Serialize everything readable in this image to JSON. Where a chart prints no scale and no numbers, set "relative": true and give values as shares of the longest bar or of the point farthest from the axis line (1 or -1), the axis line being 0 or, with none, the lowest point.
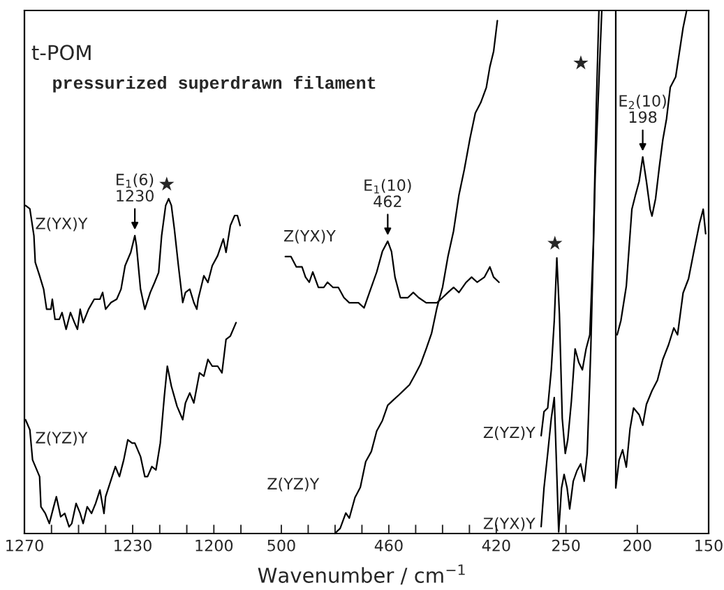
{
  "chart_data": [
    {
      "type": "line",
      "relative": true,
      "title": "t-POM",
      "subtitle": "pressurized superdrawn filament",
      "xlim": [
        1270,
        1185
      ],
      "xticks": [
        1270,
        {
          "value": 1260,
          "label": null
        },
        {
          "value": 1250,
          "label": null
        },
        {
          "value": 1240,
          "label": null
        },
        1230,
        {
          "value": 1220,
          "label": null
        },
        {
          "value": 1210,
          "label": null
        },
        1200,
        {
          "value": 1190,
          "label": null
        }
      ],
      "annotations": [
        {
          "text": "E$_{1}$(6)\n1230",
          "x": 1229.2,
          "y": 0.89
        },
        {
          "text": "★",
          "x": 1216.7,
          "y": 1.0
        }
      ],
      "series": [
        {
          "name": "Z(YX)Y",
          "color": "#000000",
          "x": [
            1269.6,
            1268.0,
            1266.5,
            1266.0,
            1264.4,
            1262.9,
            1261.8,
            1260.2,
            1259.7,
            1258.7,
            1257.1,
            1256.1,
            1254.6,
            1253.0,
            1251.5,
            1250.4,
            1249.4,
            1248.3,
            1246.3,
            1244.2,
            1242.1,
            1241.1,
            1240.0,
            1238.0,
            1235.9,
            1234.3,
            1232.8,
            1230.7,
            1229.2,
            1228.6,
            1227.1,
            1225.5,
            1223.5,
            1221.9,
            1220.4,
            1219.3,
            1217.8,
            1216.7,
            1215.7,
            1214.6,
            1213.1,
            1211.5,
            1210.5,
            1208.9,
            1207.4,
            1206.3,
            1205.8,
            1203.7,
            1202.2,
            1200.6,
            1198.6,
            1196.5,
            1195.5,
            1193.9,
            1192.3,
            1191.3,
            1190.3
          ],
          "values": [
            0.98,
            0.97,
            0.89,
            0.81,
            0.77,
            0.73,
            0.67,
            0.67,
            0.7,
            0.64,
            0.64,
            0.66,
            0.61,
            0.66,
            0.63,
            0.61,
            0.67,
            0.63,
            0.67,
            0.7,
            0.7,
            0.72,
            0.67,
            0.69,
            0.7,
            0.73,
            0.8,
            0.84,
            0.89,
            0.86,
            0.73,
            0.67,
            0.72,
            0.75,
            0.78,
            0.89,
            0.98,
            1.0,
            0.98,
            0.91,
            0.8,
            0.69,
            0.72,
            0.73,
            0.69,
            0.67,
            0.7,
            0.77,
            0.75,
            0.8,
            0.83,
            0.88,
            0.84,
            0.92,
            0.95,
            0.95,
            0.92
          ]
        },
        {
          "name": "Z(YZ)Y",
          "color": "#000000",
          "x": [
            1269.6,
            1268.0,
            1267.0,
            1264.4,
            1263.9,
            1262.3,
            1260.8,
            1259.2,
            1258.2,
            1256.6,
            1255.1,
            1253.5,
            1252.5,
            1250.9,
            1249.4,
            1248.3,
            1246.8,
            1245.2,
            1243.7,
            1242.1,
            1240.6,
            1240.0,
            1238.0,
            1236.4,
            1234.9,
            1233.3,
            1231.8,
            1230.2,
            1229.2,
            1227.1,
            1225.5,
            1224.5,
            1222.9,
            1221.4,
            1219.8,
            1218.3,
            1217.2,
            1215.7,
            1213.6,
            1211.5,
            1210.5,
            1208.9,
            1207.4,
            1205.3,
            1203.7,
            1202.2,
            1200.6,
            1198.6,
            1197.0,
            1195.5,
            1193.9,
            1191.8
          ],
          "values": [
            0.34,
            0.31,
            0.22,
            0.17,
            0.08,
            0.06,
            0.03,
            0.08,
            0.11,
            0.05,
            0.06,
            0.02,
            0.03,
            0.09,
            0.06,
            0.03,
            0.08,
            0.06,
            0.09,
            0.13,
            0.06,
            0.11,
            0.16,
            0.2,
            0.17,
            0.22,
            0.28,
            0.27,
            0.27,
            0.23,
            0.17,
            0.17,
            0.2,
            0.19,
            0.27,
            0.41,
            0.5,
            0.44,
            0.38,
            0.34,
            0.39,
            0.42,
            0.39,
            0.48,
            0.47,
            0.52,
            0.5,
            0.5,
            0.48,
            0.58,
            0.59,
            0.63
          ]
        }
      ]
    },
    {
      "type": "line",
      "relative": true,
      "xlabel": "Wavenumber / cm$^{−1}$",
      "xlim": [
        510,
        410
      ],
      "xticks": [
        500,
        {
          "value": 490,
          "label": null
        },
        {
          "value": 480,
          "label": null
        },
        {
          "value": 470,
          "label": null
        },
        460,
        {
          "value": 450,
          "label": null
        },
        {
          "value": 440,
          "label": null
        },
        {
          "value": 430,
          "label": null
        },
        420
      ],
      "annotations": [
        {
          "text": "E$_{1}$(10)\n462",
          "x": 460.4,
          "y": 0.57
        }
      ],
      "series": [
        {
          "name": "Z(YX)Y",
          "color": "#000000",
          "x": [
            498.5,
            496.4,
            494.4,
            492.3,
            491.0,
            489.6,
            488.3,
            486.2,
            484.2,
            482.8,
            480.8,
            478.8,
            476.7,
            474.7,
            471.3,
            469.2,
            467.2,
            464.5,
            462.4,
            460.4,
            459.0,
            457.7,
            455.7,
            452.9,
            450.9,
            448.9,
            446.1,
            444.1,
            442.1,
            440.0,
            438.0,
            435.9,
            433.9,
            431.2,
            429.2,
            427.1,
            424.4,
            422.4,
            421.0,
            419.0
          ],
          "values": [
            0.54,
            0.54,
            0.52,
            0.52,
            0.5,
            0.49,
            0.51,
            0.48,
            0.48,
            0.49,
            0.48,
            0.48,
            0.46,
            0.45,
            0.45,
            0.44,
            0.47,
            0.51,
            0.55,
            0.57,
            0.55,
            0.5,
            0.46,
            0.46,
            0.47,
            0.46,
            0.45,
            0.45,
            0.45,
            0.46,
            0.47,
            0.48,
            0.47,
            0.49,
            0.5,
            0.49,
            0.5,
            0.52,
            0.5,
            0.49
          ]
        },
        {
          "name": "Z(YZ)Y",
          "color": "#000000",
          "x": [
            480.1,
            478.1,
            476.0,
            474.7,
            472.6,
            470.6,
            468.6,
            466.5,
            464.5,
            462.4,
            460.4,
            458.4,
            456.3,
            454.3,
            452.3,
            450.2,
            448.2,
            446.1,
            444.1,
            442.1,
            440.0,
            438.0,
            435.9,
            433.9,
            431.9,
            429.8,
            427.8,
            425.8,
            423.7,
            422.4,
            421.0,
            419.6
          ],
          "values": [
            0.0,
            0.01,
            0.04,
            0.03,
            0.07,
            0.09,
            0.14,
            0.16,
            0.2,
            0.22,
            0.25,
            0.26,
            0.27,
            0.28,
            0.29,
            0.31,
            0.33,
            0.36,
            0.39,
            0.44,
            0.48,
            0.54,
            0.59,
            0.66,
            0.71,
            0.77,
            0.82,
            0.84,
            0.87,
            0.91,
            0.94,
            1.0
          ]
        }
      ]
    },
    {
      "type": "line",
      "relative": true,
      "xlim": [
        280,
        150
      ],
      "xticks": [
        250,
        200,
        150
      ],
      "annotations": [
        {
          "text": "E$_{2}$(10)\n198",
          "x": 196.2,
          "y": 0.72
        },
        {
          "text": "★",
          "x": 256.4,
          "y": 0.527
        },
        {
          "text": "★",
          "x": 228.7,
          "y": 0.82
        }
      ],
      "series": [
        {
          "name": "Z(YZ)Y",
          "color": "#000000",
          "x": [
            267.4,
            265.4,
            262.8,
            260.3,
            258.2,
            256.4,
            254.6,
            252.6,
            250.5,
            248.7,
            246.2,
            243.6,
            241.0,
            238.5,
            235.9,
            233.3,
            230.8,
            228.7,
            226.9,
            220,
            214.1,
            211.5,
            207.7,
            203.8,
            201.3,
            198.7,
            196.2,
            193.6,
            191.0,
            189.7,
            187.2,
            184.6,
            182.1,
            179.5,
            176.9,
            173.1,
            170.5,
            167.9,
            165.4
          ],
          "values": [
            0.187,
            0.233,
            0.24,
            0.313,
            0.407,
            0.527,
            0.42,
            0.22,
            0.153,
            0.18,
            0.253,
            0.353,
            0.327,
            0.313,
            0.353,
            0.38,
            0.553,
            0.82,
            1.0,
            null,
            0.38,
            0.407,
            0.473,
            0.62,
            0.647,
            0.673,
            0.72,
            0.673,
            0.62,
            0.607,
            0.64,
            0.7,
            0.753,
            0.793,
            0.853,
            0.873,
            0.92,
            0.967,
            1.0
          ]
        },
        {
          "name": "Z(YX)Y",
          "color": "#000000",
          "x": [
            267.4,
            265.4,
            262.8,
            260.3,
            258.2,
            256.9,
            255.1,
            253.1,
            251.3,
            249.2,
            247.4,
            244.9,
            242.3,
            239.7,
            237.2,
            235.1,
            232.6,
            229.5,
            224.9,
            220,
            215.1,
            215.1,
            212.8,
            210.3,
            207.7,
            205.1,
            202.6,
            198.7,
            196.2,
            193.6,
            189.7,
            185.9,
            182.1,
            178.2,
            174.4,
            171.8,
            167.9,
            164.1,
            160.3,
            156.4,
            153.8,
            152.1
          ],
          "values": [
            0.013,
            0.087,
            0.153,
            0.22,
            0.26,
            0.153,
            0.003,
            0.087,
            0.113,
            0.087,
            0.047,
            0.1,
            0.12,
            0.133,
            0.1,
            0.153,
            0.353,
            0.687,
            1.0,
            null,
            1.0,
            0.087,
            0.14,
            0.16,
            0.127,
            0.2,
            0.24,
            0.227,
            0.207,
            0.247,
            0.273,
            0.293,
            0.333,
            0.36,
            0.393,
            0.38,
            0.46,
            0.487,
            0.54,
            0.593,
            0.62,
            0.573
          ]
        }
      ]
    }
  ]
}
